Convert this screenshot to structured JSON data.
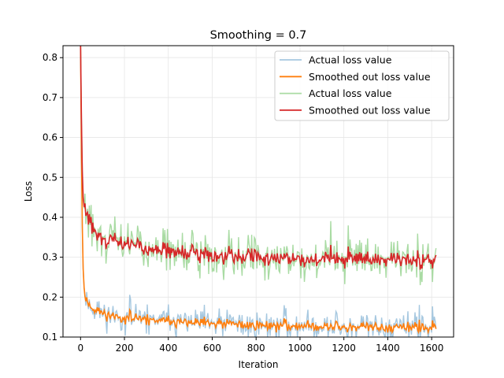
{
  "chart_data": {
    "type": "line",
    "title": "Smoothing = 0.7",
    "xlabel": "Iteration",
    "ylabel": "Loss",
    "xlim": [
      -80,
      1700
    ],
    "ylim": [
      0.1,
      0.83
    ],
    "xticks": [
      0,
      200,
      400,
      600,
      800,
      1000,
      1200,
      1400,
      1600
    ],
    "yticks": [
      0.1,
      0.2,
      0.3,
      0.4,
      0.5,
      0.6,
      0.7,
      0.8
    ],
    "grid": true,
    "legend_position": "top-right",
    "series": [
      {
        "name": "Actual loss value",
        "color": "#a6c8e0",
        "style": "raw",
        "x": [
          0,
          5,
          10,
          15,
          20,
          30,
          40,
          50,
          60,
          80,
          100,
          125,
          150,
          175,
          200,
          250,
          300,
          350,
          400,
          450,
          500,
          550,
          600,
          650,
          700,
          750,
          800,
          850,
          900,
          950,
          1000,
          1050,
          1100,
          1150,
          1200,
          1250,
          1300,
          1350,
          1400,
          1450,
          1500,
          1550,
          1600,
          1620
        ],
        "y": [
          0.83,
          0.5,
          0.3,
          0.23,
          0.2,
          0.19,
          0.18,
          0.175,
          0.17,
          0.165,
          0.16,
          0.155,
          0.152,
          0.15,
          0.148,
          0.145,
          0.143,
          0.14,
          0.138,
          0.137,
          0.135,
          0.134,
          0.133,
          0.132,
          0.131,
          0.13,
          0.13,
          0.129,
          0.128,
          0.128,
          0.127,
          0.127,
          0.126,
          0.126,
          0.125,
          0.125,
          0.125,
          0.124,
          0.124,
          0.123,
          0.123,
          0.122,
          0.122,
          0.12
        ],
        "noise": 0.022,
        "seed": 11
      },
      {
        "name": "Smoothed out loss value",
        "color": "#ff7f0e",
        "style": "smooth",
        "x": [
          0,
          5,
          10,
          15,
          20,
          30,
          40,
          50,
          60,
          80,
          100,
          125,
          150,
          175,
          200,
          250,
          300,
          350,
          400,
          450,
          500,
          550,
          600,
          650,
          700,
          750,
          800,
          850,
          900,
          950,
          1000,
          1050,
          1100,
          1150,
          1200,
          1250,
          1300,
          1350,
          1400,
          1450,
          1500,
          1550,
          1600,
          1620
        ],
        "y": [
          0.83,
          0.5,
          0.3,
          0.23,
          0.2,
          0.19,
          0.18,
          0.175,
          0.17,
          0.165,
          0.16,
          0.155,
          0.152,
          0.15,
          0.148,
          0.145,
          0.143,
          0.14,
          0.138,
          0.137,
          0.135,
          0.134,
          0.133,
          0.132,
          0.131,
          0.13,
          0.13,
          0.129,
          0.128,
          0.128,
          0.127,
          0.127,
          0.126,
          0.126,
          0.125,
          0.125,
          0.125,
          0.124,
          0.124,
          0.123,
          0.123,
          0.122,
          0.122,
          0.12
        ],
        "noise": 0.008,
        "seed": 11
      },
      {
        "name": "Actual loss value",
        "color": "#a9dba3",
        "style": "raw",
        "x": [
          0,
          5,
          10,
          15,
          20,
          30,
          40,
          50,
          60,
          80,
          100,
          125,
          150,
          175,
          200,
          250,
          300,
          350,
          400,
          450,
          500,
          550,
          600,
          650,
          700,
          750,
          800,
          850,
          900,
          950,
          1000,
          1050,
          1100,
          1150,
          1200,
          1250,
          1300,
          1350,
          1400,
          1450,
          1500,
          1550,
          1600,
          1620
        ],
        "y": [
          0.83,
          0.6,
          0.46,
          0.43,
          0.42,
          0.41,
          0.395,
          0.38,
          0.37,
          0.355,
          0.345,
          0.34,
          0.337,
          0.334,
          0.332,
          0.327,
          0.322,
          0.318,
          0.315,
          0.312,
          0.31,
          0.308,
          0.306,
          0.305,
          0.303,
          0.302,
          0.301,
          0.3,
          0.299,
          0.298,
          0.297,
          0.296,
          0.296,
          0.295,
          0.295,
          0.295,
          0.294,
          0.294,
          0.294,
          0.293,
          0.293,
          0.292,
          0.292,
          0.295
        ],
        "noise": 0.032,
        "seed": 29
      },
      {
        "name": "Smoothed out loss value",
        "color": "#d62728",
        "style": "smooth",
        "x": [
          0,
          5,
          10,
          15,
          20,
          30,
          40,
          50,
          60,
          80,
          100,
          125,
          150,
          175,
          200,
          250,
          300,
          350,
          400,
          450,
          500,
          550,
          600,
          650,
          700,
          750,
          800,
          850,
          900,
          950,
          1000,
          1050,
          1100,
          1150,
          1200,
          1250,
          1300,
          1350,
          1400,
          1450,
          1500,
          1550,
          1600,
          1620
        ],
        "y": [
          0.83,
          0.6,
          0.46,
          0.43,
          0.42,
          0.41,
          0.395,
          0.38,
          0.37,
          0.355,
          0.345,
          0.34,
          0.337,
          0.334,
          0.332,
          0.327,
          0.322,
          0.318,
          0.315,
          0.312,
          0.31,
          0.308,
          0.306,
          0.305,
          0.303,
          0.302,
          0.301,
          0.3,
          0.299,
          0.298,
          0.297,
          0.296,
          0.296,
          0.295,
          0.295,
          0.295,
          0.294,
          0.294,
          0.294,
          0.293,
          0.293,
          0.292,
          0.292,
          0.295
        ],
        "noise": 0.012,
        "seed": 29
      }
    ]
  }
}
